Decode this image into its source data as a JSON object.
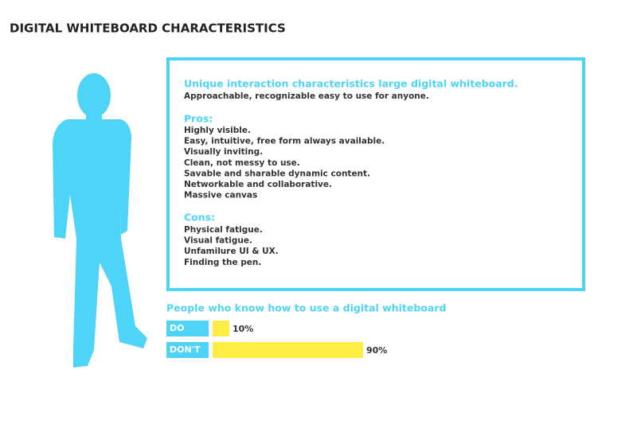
{
  "title": "DIGITAL WHITEBOARD CHARACTERISTICS",
  "card": {
    "heading": "Unique interaction characteristics large digital whiteboard.",
    "subheading": "Approachable, recognizable easy to use for anyone.",
    "pros_title": "Pros:",
    "pros": [
      "Highly visible.",
      "Easy, intuitive, free form always available.",
      "Visually inviting.",
      "Clean, not messy to use.",
      "Savable and sharable dynamic content.",
      "Networkable and collaborative.",
      "Massive canvas"
    ],
    "cons_title": "Cons:",
    "cons": [
      "Physical fatigue.",
      "Visual fatigue.",
      "Unfamilure UI & UX.",
      "Finding the pen."
    ]
  },
  "chart_data": {
    "type": "bar",
    "orientation": "horizontal",
    "title": "People who know how to use a digital whiteboard",
    "categories": [
      "DO",
      "DON'T"
    ],
    "values": [
      10,
      90
    ],
    "value_labels": [
      "10%",
      "90%"
    ],
    "color": "#ffec44"
  }
}
